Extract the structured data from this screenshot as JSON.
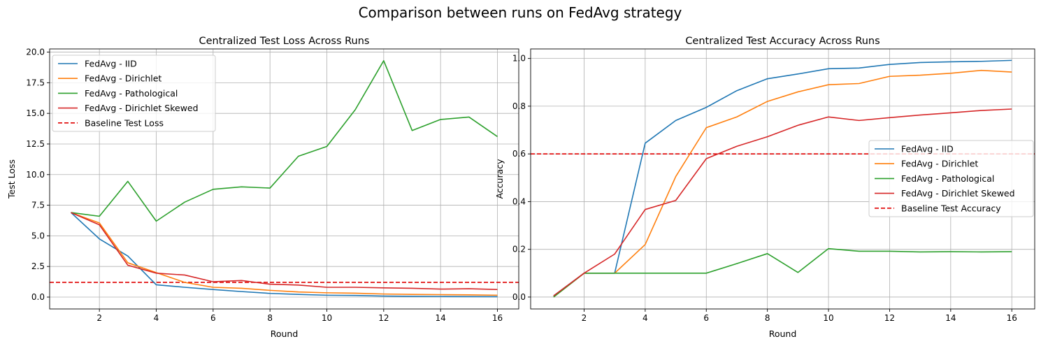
{
  "figure": {
    "title": "Comparison between runs on FedAvg strategy"
  },
  "chart_data": [
    {
      "type": "line",
      "title": "Centralized Test Loss Across Runs",
      "xlabel": "Round",
      "ylabel": "Test Loss",
      "xlim": [
        0.25,
        16.75
      ],
      "ylim": [
        -0.97,
        20.26
      ],
      "xticks": [
        2,
        4,
        6,
        8,
        10,
        12,
        14,
        16
      ],
      "yticks": [
        0.0,
        2.5,
        5.0,
        7.5,
        10.0,
        12.5,
        15.0,
        17.5,
        20.0
      ],
      "ytick_labels": [
        "0.0",
        "2.5",
        "5.0",
        "7.5",
        "10.0",
        "12.5",
        "15.0",
        "17.5",
        "20.0"
      ],
      "grid": true,
      "legend_position": "upper-left",
      "x": [
        1,
        2,
        3,
        4,
        5,
        6,
        7,
        8,
        9,
        10,
        11,
        12,
        13,
        14,
        15,
        16
      ],
      "series": [
        {
          "name": "FedAvg - IID",
          "color": "#1f77b4",
          "values": [
            6.9,
            4.75,
            3.35,
            1.0,
            0.8,
            0.62,
            0.45,
            0.3,
            0.22,
            0.15,
            0.13,
            0.08,
            0.06,
            0.05,
            0.04,
            0.03
          ]
        },
        {
          "name": "FedAvg - Dirichlet",
          "color": "#ff7f0e",
          "values": [
            6.9,
            6.05,
            2.8,
            2.0,
            1.2,
            0.8,
            0.72,
            0.55,
            0.42,
            0.35,
            0.32,
            0.25,
            0.22,
            0.2,
            0.18,
            0.15
          ]
        },
        {
          "name": "FedAvg - Pathological",
          "color": "#2ca02c",
          "values": [
            6.9,
            6.6,
            9.45,
            6.2,
            7.75,
            8.8,
            9.0,
            8.9,
            11.5,
            12.3,
            15.3,
            19.3,
            13.6,
            14.5,
            14.7,
            13.1
          ]
        },
        {
          "name": "FedAvg - Dirichlet Skewed",
          "color": "#d62728",
          "values": [
            6.9,
            5.9,
            2.6,
            1.95,
            1.8,
            1.25,
            1.35,
            1.05,
            0.98,
            0.8,
            0.8,
            0.75,
            0.72,
            0.65,
            0.68,
            0.62
          ]
        }
      ],
      "baseline": {
        "name": "Baseline Test Loss",
        "color": "#e00000",
        "value": 1.2
      }
    },
    {
      "type": "line",
      "title": "Centralized Test Accuracy Across Runs",
      "xlabel": "Round",
      "ylabel": "Accuracy",
      "xlim": [
        0.25,
        16.75
      ],
      "ylim": [
        -0.05,
        1.04
      ],
      "xticks": [
        2,
        4,
        6,
        8,
        10,
        12,
        14,
        16
      ],
      "yticks": [
        0.0,
        0.2,
        0.4,
        0.6,
        0.8,
        1.0
      ],
      "ytick_labels": [
        "0.0",
        "0.2",
        "0.4",
        "0.6",
        "0.8",
        "1.0"
      ],
      "grid": true,
      "legend_position": "center-right",
      "x": [
        1,
        2,
        3,
        4,
        5,
        6,
        7,
        8,
        9,
        10,
        11,
        12,
        13,
        14,
        15,
        16
      ],
      "series": [
        {
          "name": "FedAvg - IID",
          "color": "#1f77b4",
          "values": [
            0.005,
            0.1,
            0.1,
            0.645,
            0.74,
            0.795,
            0.865,
            0.915,
            0.935,
            0.957,
            0.96,
            0.975,
            0.983,
            0.986,
            0.988,
            0.992
          ]
        },
        {
          "name": "FedAvg - Dirichlet",
          "color": "#ff7f0e",
          "values": [
            0.0,
            0.1,
            0.1,
            0.22,
            0.505,
            0.71,
            0.755,
            0.82,
            0.86,
            0.89,
            0.895,
            0.925,
            0.93,
            0.938,
            0.95,
            0.943
          ]
        },
        {
          "name": "FedAvg - Pathological",
          "color": "#2ca02c",
          "values": [
            0.0,
            0.1,
            0.1,
            0.1,
            0.1,
            0.1,
            0.14,
            0.182,
            0.103,
            0.203,
            0.192,
            0.192,
            0.189,
            0.19,
            0.189,
            0.19
          ]
        },
        {
          "name": "FedAvg - Dirichlet Skewed",
          "color": "#d62728",
          "values": [
            0.005,
            0.1,
            0.18,
            0.367,
            0.405,
            0.58,
            0.632,
            0.672,
            0.72,
            0.755,
            0.74,
            0.752,
            0.763,
            0.772,
            0.782,
            0.788
          ]
        }
      ],
      "baseline": {
        "name": "Baseline Test Accuracy",
        "color": "#e00000",
        "value": 0.6
      }
    }
  ]
}
